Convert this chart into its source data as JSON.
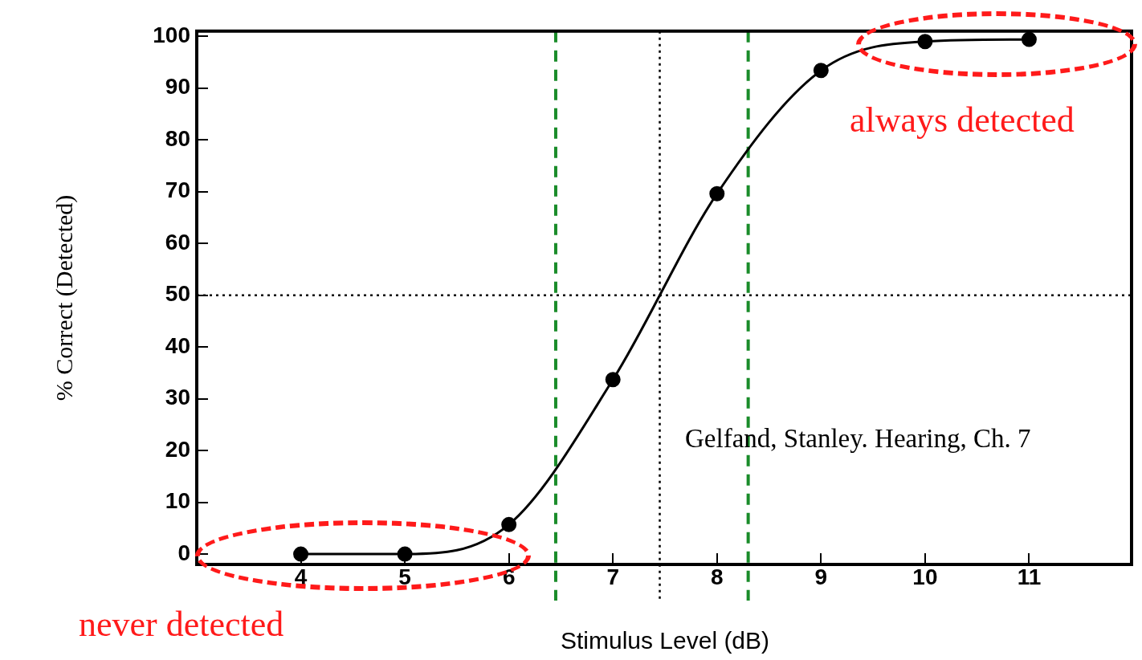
{
  "chart_data": {
    "type": "line",
    "xlabel": "Stimulus Level (dB)",
    "ylabel": "% Correct (Detected)",
    "series": [
      {
        "color": "#000000",
        "x": [
          4,
          5,
          6,
          7,
          8,
          9,
          10,
          11
        ],
        "values": [
          0,
          0,
          5.7,
          33.7,
          69.6,
          93.4,
          99,
          99.4
        ]
      }
    ],
    "xlim": [
      3,
      12
    ],
    "xticks": [
      4,
      5,
      6,
      7,
      8,
      9,
      10,
      11
    ],
    "ylim": [
      -2,
      101
    ],
    "yticks": [
      0,
      10,
      20,
      30,
      40,
      50,
      60,
      70,
      80,
      90,
      100
    ],
    "ref_lines": [
      {
        "axis": "x",
        "value": 6.45,
        "color": "#1a8c2a",
        "line_style": "dashed"
      },
      {
        "axis": "x",
        "value": 8.3,
        "color": "#1a8c2a",
        "line_style": "dashed"
      },
      {
        "axis": "y",
        "value": 50,
        "color": "#000000",
        "line_style": "dotted"
      },
      {
        "axis": "x",
        "value": 7.45,
        "color": "#000000",
        "line_style": "dotted"
      }
    ],
    "annotations": [
      "never detected",
      "always detected",
      "Gelfand, Stanley. Hearing, Ch. 7"
    ],
    "grid": false,
    "legend": false,
    "marker": "circle",
    "line_style": "solid"
  }
}
